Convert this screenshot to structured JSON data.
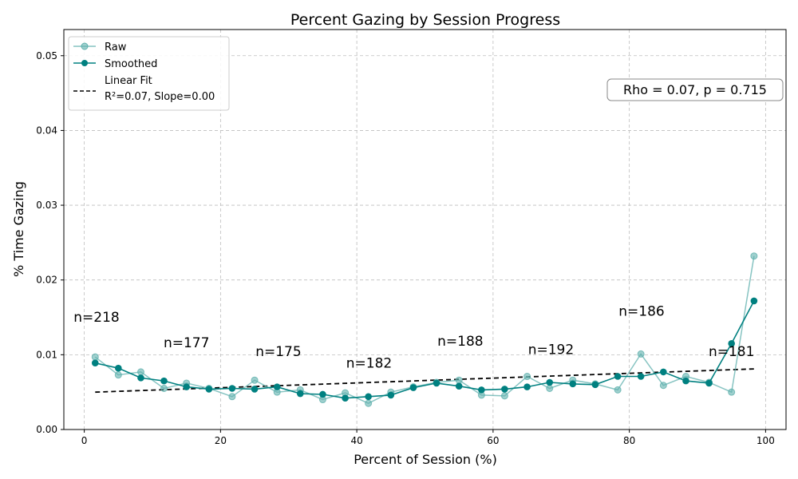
{
  "chart_data": {
    "type": "line",
    "title": "Percent Gazing by Session Progress",
    "xlabel": "Percent of Session (%)",
    "ylabel": "% Time Gazing",
    "xlim": [
      -3,
      103
    ],
    "ylim": [
      0,
      0.0535
    ],
    "xticks": [
      0,
      20,
      40,
      60,
      80,
      100
    ],
    "xtick_labels": [
      "0",
      "20",
      "40",
      "60",
      "80",
      "100"
    ],
    "yticks": [
      0,
      0.01,
      0.02,
      0.03,
      0.04,
      0.05
    ],
    "ytick_labels": [
      "0.00",
      "0.01",
      "0.02",
      "0.03",
      "0.04",
      "0.05"
    ],
    "grid": true,
    "legend": {
      "position": "top-left",
      "entries": [
        {
          "key": "raw",
          "label": "Raw"
        },
        {
          "key": "smoothed",
          "label": "Smoothed"
        },
        {
          "key": "fit",
          "label": "Linear Fit",
          "sub": "R²=0.07, Slope=0.00"
        }
      ]
    },
    "colors": {
      "raw": "#5fb0ad",
      "smoothed": "#008080",
      "fit": "#000000",
      "grid": "#bdbdbd"
    },
    "series": [
      {
        "name": "Raw",
        "key": "raw",
        "x": [
          1.6,
          5.0,
          8.3,
          11.7,
          15.0,
          18.3,
          21.7,
          25.0,
          28.3,
          31.7,
          35.0,
          38.3,
          41.7,
          45.0,
          48.3,
          51.7,
          55.0,
          58.3,
          61.7,
          65.0,
          68.3,
          71.7,
          75.0,
          78.3,
          81.7,
          85.0,
          88.3,
          91.7,
          95.0,
          98.3
        ],
        "y": [
          0.0097,
          0.0073,
          0.0077,
          0.0055,
          0.0062,
          0.0055,
          0.0044,
          0.0066,
          0.005,
          0.0053,
          0.004,
          0.0049,
          0.0035,
          0.005,
          0.0057,
          0.0063,
          0.0066,
          0.0046,
          0.0045,
          0.0071,
          0.0055,
          0.0066,
          0.0061,
          0.0053,
          0.0101,
          0.0059,
          0.0071,
          0.0063,
          0.005,
          0.0232
        ]
      },
      {
        "name": "Smoothed",
        "key": "smoothed",
        "x": [
          1.6,
          5.0,
          8.3,
          11.7,
          15.0,
          18.3,
          21.7,
          25.0,
          28.3,
          31.7,
          35.0,
          38.3,
          41.7,
          45.0,
          48.3,
          51.7,
          55.0,
          58.3,
          61.7,
          65.0,
          68.3,
          71.7,
          75.0,
          78.3,
          81.7,
          85.0,
          88.3,
          91.7,
          95.0,
          98.3
        ],
        "y": [
          0.0089,
          0.0082,
          0.0069,
          0.0065,
          0.0057,
          0.0054,
          0.0055,
          0.0054,
          0.0057,
          0.0048,
          0.0047,
          0.0042,
          0.0044,
          0.0046,
          0.0056,
          0.0062,
          0.0058,
          0.0053,
          0.0054,
          0.0057,
          0.0063,
          0.0061,
          0.006,
          0.0071,
          0.0071,
          0.0077,
          0.0065,
          0.0062,
          0.0115,
          0.0172
        ]
      },
      {
        "name": "Linear Fit",
        "key": "fit",
        "x": [
          1.6,
          98.3
        ],
        "y": [
          0.005,
          0.0081
        ]
      }
    ],
    "stat_box": "Rho = 0.07, p = 0.715",
    "annotations": [
      {
        "text": "n=218",
        "x": 1.8,
        "y": 0.0144
      },
      {
        "text": "n=177",
        "x": 15.0,
        "y": 0.011
      },
      {
        "text": "n=175",
        "x": 28.5,
        "y": 0.0098
      },
      {
        "text": "n=182",
        "x": 41.8,
        "y": 0.0083
      },
      {
        "text": "n=188",
        "x": 55.2,
        "y": 0.0112
      },
      {
        "text": "n=192",
        "x": 68.5,
        "y": 0.0101
      },
      {
        "text": "n=186",
        "x": 81.8,
        "y": 0.0152
      },
      {
        "text": "n=181",
        "x": 95.0,
        "y": 0.0098
      }
    ]
  }
}
